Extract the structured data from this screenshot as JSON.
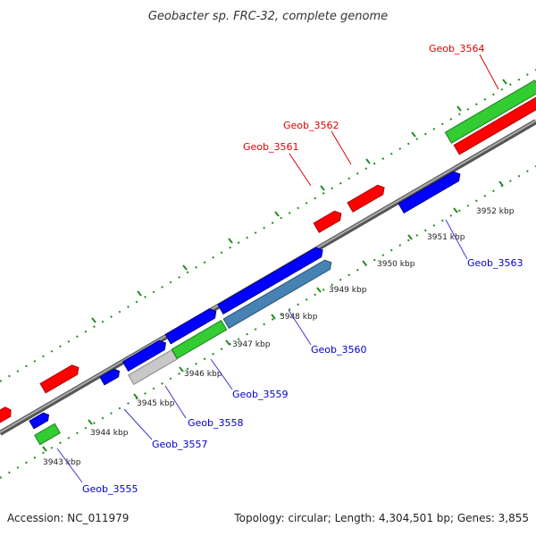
{
  "title": "Geobacter sp. FRC-32, complete genome",
  "footer": {
    "accession": "Accession: NC_011979",
    "summary": "Topology: circular; Length: 4,304,501 bp; Genes: 3,855"
  },
  "colors": {
    "red": "#ff0000",
    "blue": "#0000ff",
    "green": "#33cc33",
    "steelblue": "#4682b4",
    "grey": "#c8c8c8",
    "backbone": "#888888",
    "dots": "#228b22",
    "red_label": "#e00000",
    "blue_label": "#0000cc"
  },
  "scale_ticks": [
    "3943 kbp",
    "3944 kbp",
    "3945 kbp",
    "3946 kbp",
    "3947 kbp",
    "3948 kbp",
    "3949 kbp",
    "3950 kbp",
    "3951 kbp",
    "3952 kbp"
  ],
  "gene_labels": {
    "geob_3555": "Geob_3555",
    "geob_3557": "Geob_3557",
    "geob_3558": "Geob_3558",
    "geob_3559": "Geob_3559",
    "geob_3560": "Geob_3560",
    "geob_3561": "Geob_3561",
    "geob_3562": "Geob_3562",
    "geob_3563": "Geob_3563",
    "geob_3564": "Geob_3564"
  }
}
